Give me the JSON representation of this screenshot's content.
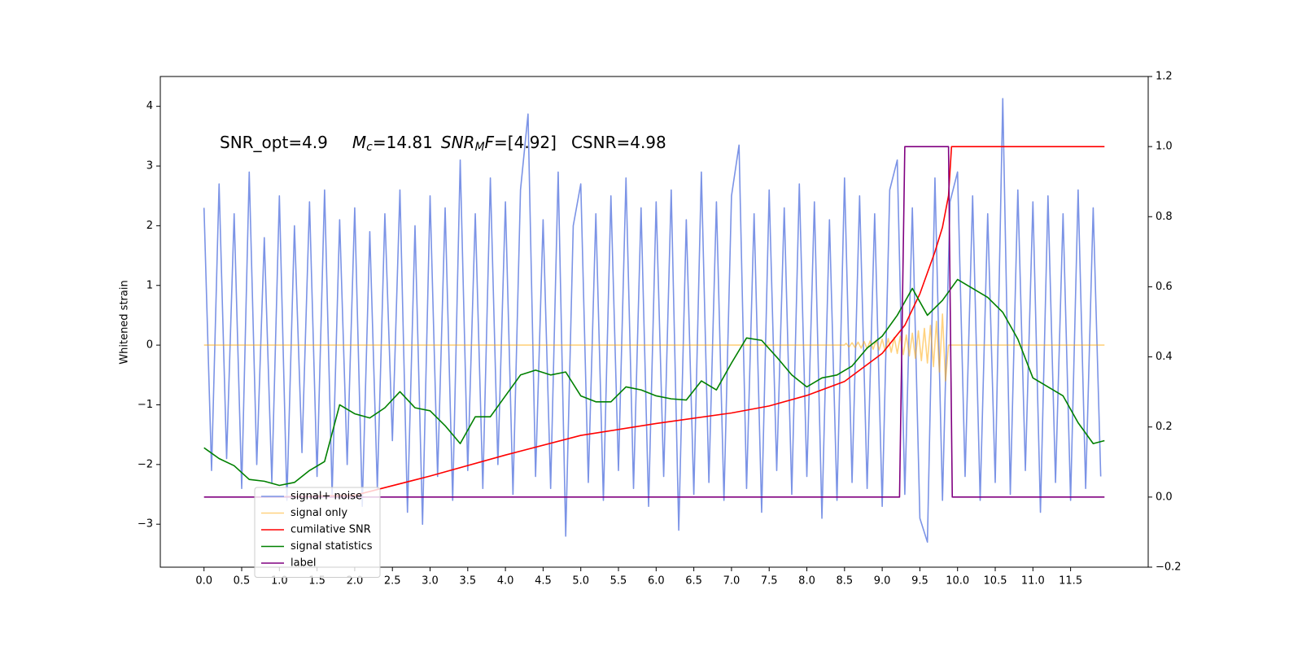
{
  "chart_data": {
    "type": "line",
    "ylabel": "Whitened strain",
    "annotation": {
      "snr_opt": "SNR_opt=4.9",
      "mc_symbol": "M",
      "mc_sub": "c",
      "mc_value": "=14.81",
      "snrmf_symbol": "SNR",
      "snrmf_sub": "M",
      "snrmf_f": "F",
      "snrmf_value": "=[4.92]",
      "csnr": "CSNR=4.98"
    },
    "xlim": [
      -0.58,
      12.53
    ],
    "ylim": [
      -3.72,
      4.5
    ],
    "y2lim": [
      -0.2,
      1.2
    ],
    "xticks": [
      {
        "value": 0,
        "label": "0.0"
      },
      0.5,
      {
        "value": 1,
        "label": "1.0"
      },
      1.5,
      {
        "value": 2,
        "label": "2.0"
      },
      2.5,
      {
        "value": 3,
        "label": "3.0"
      },
      3.5,
      {
        "value": 4,
        "label": "4.0"
      },
      4.5,
      {
        "value": 5,
        "label": "5.0"
      },
      5.5,
      {
        "value": 6,
        "label": "6.0"
      },
      6.5,
      {
        "value": 7,
        "label": "7.0"
      },
      7.5,
      {
        "value": 8,
        "label": "8.0"
      },
      8.5,
      {
        "value": 9,
        "label": "9.0"
      },
      9.5,
      {
        "value": 10,
        "label": "10.0"
      },
      10.5,
      {
        "value": 11,
        "label": "11.0"
      },
      11.5
    ],
    "yticks": [
      {
        "value": -3,
        "label": "−3"
      },
      {
        "value": -2,
        "label": "−2"
      },
      {
        "value": -1,
        "label": "−1"
      },
      0,
      1,
      2,
      3,
      4
    ],
    "y2ticks": [
      {
        "value": -0.2,
        "label": "−0.2"
      },
      {
        "value": 0,
        "label": "0.0"
      },
      0.2,
      0.4,
      0.6,
      0.8,
      {
        "value": 1,
        "label": "1.0"
      },
      1.2
    ],
    "legend": "lower left",
    "series": [
      {
        "name": "signal+ noise",
        "color": "#7b93e6",
        "axis": "y",
        "x": [
          0,
          0.1,
          0.2,
          0.3,
          0.4,
          0.5,
          0.6,
          0.7,
          0.8,
          0.9,
          1,
          1.1,
          1.2,
          1.3,
          1.4,
          1.5,
          1.6,
          1.7,
          1.8,
          1.9,
          2,
          2.1,
          2.2,
          2.3,
          2.4,
          2.5,
          2.6,
          2.7,
          2.8,
          2.9,
          3,
          3.1,
          3.2,
          3.3,
          3.4,
          3.5,
          3.6,
          3.7,
          3.8,
          3.9,
          4,
          4.1,
          4.2,
          4.3,
          4.4,
          4.5,
          4.6,
          4.7,
          4.8,
          4.9,
          5,
          5.1,
          5.2,
          5.3,
          5.4,
          5.5,
          5.6,
          5.7,
          5.8,
          5.9,
          6,
          6.1,
          6.2,
          6.3,
          6.4,
          6.5,
          6.6,
          6.7,
          6.8,
          6.9,
          7,
          7.1,
          7.2,
          7.3,
          7.4,
          7.5,
          7.6,
          7.7,
          7.8,
          7.9,
          8,
          8.1,
          8.2,
          8.3,
          8.4,
          8.5,
          8.6,
          8.7,
          8.8,
          8.9,
          9,
          9.1,
          9.2,
          9.3,
          9.4,
          9.5,
          9.6,
          9.7,
          9.8,
          9.9,
          10,
          10.1,
          10.2,
          10.3,
          10.4,
          10.5,
          10.6,
          10.7,
          10.8,
          10.9,
          11,
          11.1,
          11.2,
          11.3,
          11.4,
          11.5,
          11.6,
          11.7,
          11.8,
          11.9
        ],
        "values": [
          2.3,
          -2.1,
          2.7,
          -1.9,
          2.2,
          -2.4,
          2.9,
          -2.0,
          1.8,
          -2.3,
          2.5,
          -2.6,
          2.0,
          -1.8,
          2.4,
          -2.2,
          2.6,
          -2.5,
          2.1,
          -2.0,
          2.3,
          -2.7,
          1.9,
          -2.4,
          2.2,
          -1.6,
          2.6,
          -2.8,
          2.0,
          -3.0,
          2.5,
          -2.2,
          2.3,
          -2.6,
          3.1,
          -2.1,
          2.2,
          -2.4,
          2.8,
          -2.0,
          2.4,
          -2.5,
          2.6,
          3.87,
          -2.2,
          2.1,
          -2.4,
          2.9,
          -3.2,
          2.0,
          2.7,
          -2.3,
          2.2,
          -2.6,
          2.5,
          -2.1,
          2.8,
          -2.4,
          2.3,
          -2.7,
          2.4,
          -2.2,
          2.6,
          -3.1,
          2.1,
          -2.5,
          2.9,
          -2.3,
          2.4,
          -2.6,
          2.5,
          3.35,
          -2.4,
          2.2,
          -2.8,
          2.6,
          -2.1,
          2.3,
          -2.5,
          2.7,
          -2.2,
          2.4,
          -2.9,
          2.1,
          -2.6,
          2.8,
          -2.3,
          2.5,
          -2.4,
          2.2,
          -2.7,
          2.6,
          3.1,
          -2.5,
          2.3,
          -2.9,
          -3.3,
          2.8,
          -2.6,
          2.4,
          2.9,
          -2.2,
          2.5,
          -2.6,
          2.2,
          -2.3,
          4.13,
          -2.5,
          2.6,
          -2.1,
          2.4,
          -2.8,
          2.5,
          -2.3,
          2.2,
          -2.6,
          2.6,
          -2.4,
          2.3,
          -2.2
        ]
      },
      {
        "name": "signal only",
        "color": "orange",
        "alpha": 0.5,
        "axis": "y",
        "x": [
          0,
          8.5,
          8.52,
          8.56,
          8.6,
          8.64,
          8.68,
          8.72,
          8.76,
          8.8,
          8.84,
          8.88,
          8.92,
          8.96,
          9.0,
          9.04,
          9.08,
          9.12,
          9.16,
          9.2,
          9.24,
          9.28,
          9.32,
          9.36,
          9.4,
          9.44,
          9.48,
          9.52,
          9.56,
          9.6,
          9.64,
          9.68,
          9.72,
          9.76,
          9.8,
          9.84,
          9.88,
          9.92,
          9.94,
          11.95
        ],
        "values": [
          0,
          0,
          0.03,
          -0.03,
          0.04,
          -0.04,
          0.05,
          -0.05,
          0.06,
          -0.06,
          0.07,
          -0.07,
          0.08,
          -0.08,
          0.1,
          -0.1,
          0.11,
          -0.12,
          0.13,
          -0.14,
          0.15,
          -0.16,
          0.17,
          -0.18,
          0.2,
          -0.22,
          0.24,
          -0.26,
          0.28,
          -0.3,
          0.33,
          -0.36,
          0.4,
          -0.45,
          0.52,
          -0.6,
          0,
          0,
          0,
          0
        ]
      },
      {
        "name": "cumilative SNR",
        "color": "red",
        "axis": "y2",
        "x": [
          0.8,
          2.0,
          3.0,
          4.0,
          5.0,
          6.0,
          7.0,
          7.5,
          8.0,
          8.5,
          9.0,
          9.3,
          9.5,
          9.7,
          9.8,
          9.88,
          9.92,
          11.95
        ],
        "values": [
          0,
          0.005,
          0.06,
          0.12,
          0.176,
          0.21,
          0.24,
          0.26,
          0.29,
          0.33,
          0.41,
          0.49,
          0.58,
          0.7,
          0.77,
          0.86,
          1.0,
          1.0
        ]
      },
      {
        "name": "signal statistics",
        "color": "green",
        "axis": "y",
        "x": [
          0,
          0.2,
          0.4,
          0.6,
          0.8,
          1.0,
          1.2,
          1.4,
          1.6,
          1.8,
          2.0,
          2.2,
          2.4,
          2.6,
          2.8,
          3.0,
          3.2,
          3.4,
          3.6,
          3.8,
          4.0,
          4.2,
          4.4,
          4.6,
          4.8,
          5.0,
          5.2,
          5.4,
          5.6,
          5.8,
          6.0,
          6.2,
          6.4,
          6.6,
          6.8,
          7.0,
          7.2,
          7.4,
          7.6,
          7.8,
          8.0,
          8.2,
          8.4,
          8.6,
          8.8,
          9.0,
          9.2,
          9.4,
          9.6,
          9.8,
          10.0,
          10.2,
          10.4,
          10.6,
          10.8,
          11.0,
          11.2,
          11.4,
          11.6,
          11.8,
          11.95
        ],
        "values": [
          -1.72,
          -1.9,
          -2.02,
          -2.25,
          -2.28,
          -2.35,
          -2.3,
          -2.1,
          -1.95,
          -1.0,
          -1.15,
          -1.22,
          -1.05,
          -0.78,
          -1.05,
          -1.1,
          -1.35,
          -1.65,
          -1.2,
          -1.2,
          -0.85,
          -0.5,
          -0.42,
          -0.5,
          -0.45,
          -0.85,
          -0.95,
          -0.95,
          -0.7,
          -0.75,
          -0.85,
          -0.9,
          -0.92,
          -0.6,
          -0.75,
          -0.3,
          0.12,
          0.08,
          -0.2,
          -0.5,
          -0.7,
          -0.55,
          -0.5,
          -0.35,
          -0.05,
          0.15,
          0.5,
          0.95,
          0.5,
          0.75,
          1.1,
          0.95,
          0.8,
          0.55,
          0.1,
          -0.55,
          -0.7,
          -0.85,
          -1.3,
          -1.65,
          -1.6
        ]
      },
      {
        "name": "label",
        "color": "purple",
        "axis": "y2",
        "x": [
          0,
          9.23,
          9.3,
          9.88,
          9.93,
          11.95
        ],
        "values": [
          0,
          0,
          1,
          1,
          0,
          0
        ]
      }
    ]
  }
}
